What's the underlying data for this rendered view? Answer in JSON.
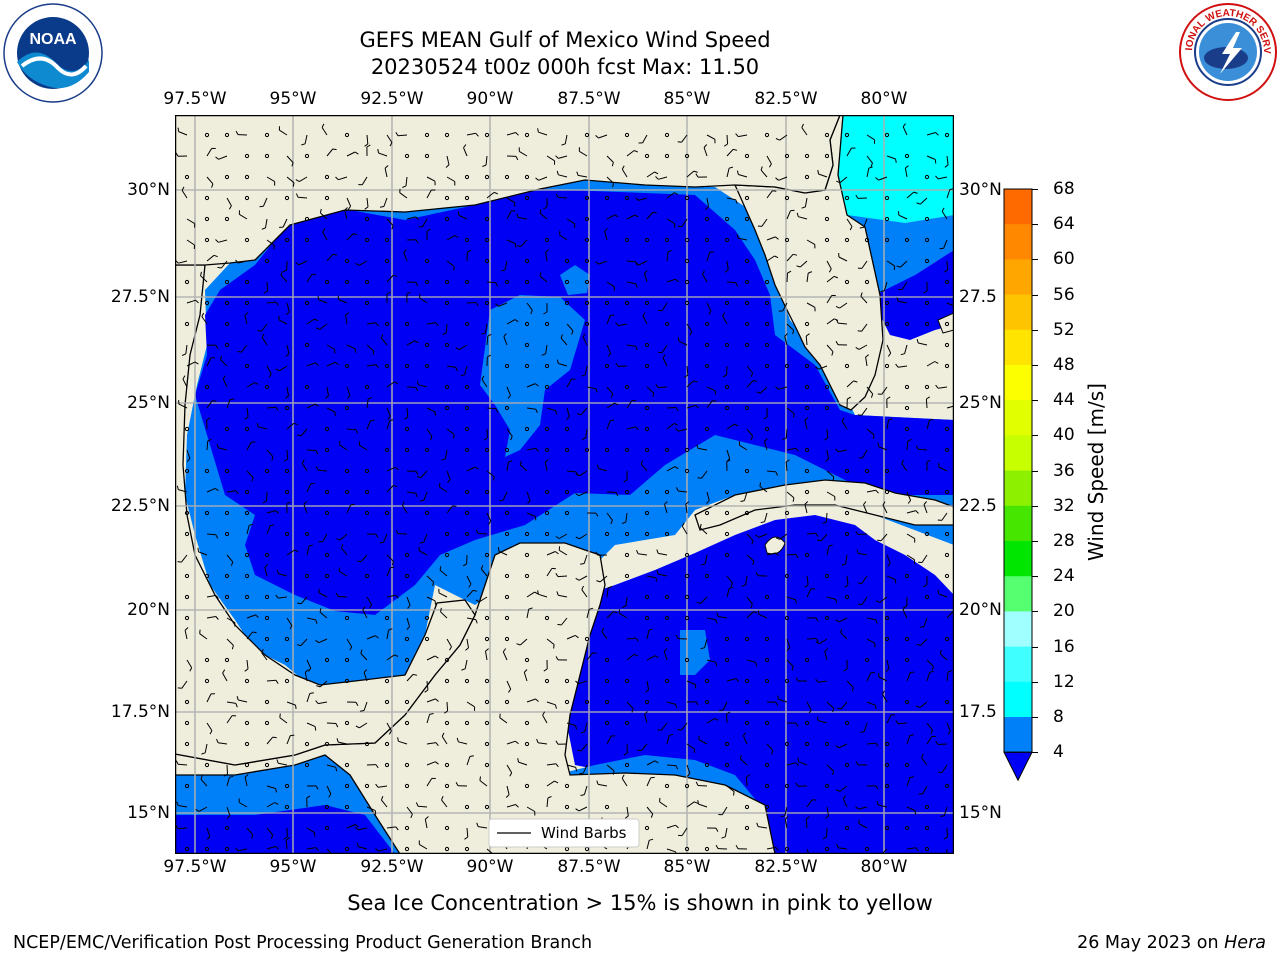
{
  "header": {
    "title_line1": "GEFS MEAN Gulf of Mexico Wind Speed",
    "title_line2": "20230524 t00z 000h fcst   Max: 11.50"
  },
  "logos": {
    "left": "NOAA",
    "left_ring_text": "NATIONAL OCEANIC AND ATMOSPHERIC ADMINISTRATION · U.S. DEPARTMENT OF COMMERCE",
    "right_ring_text": "NATIONAL WEATHER SERVICE"
  },
  "map": {
    "lon_labels": [
      "97.5°W",
      "95°W",
      "92.5°W",
      "90°W",
      "87.5°W",
      "85°W",
      "82.5°W",
      "80°W"
    ],
    "lat_labels_left": [
      "30°N",
      "27.5°N",
      "25°N",
      "22.5°N",
      "20°N",
      "17.5°N",
      "15°N"
    ],
    "lat_labels_right": [
      "30°N",
      "27.5",
      "25°N",
      "22.5",
      "20°N",
      "17.5",
      "15°N"
    ],
    "legend_label": "Wind Barbs",
    "colors": {
      "land": "#efeedd",
      "ocean_0_4": "#0000f5",
      "ocean_4_8": "#0080f8",
      "ocean_8_12": "#00ffff",
      "ocean_12_16": "#40ffff",
      "grid": "#b0b0b0"
    }
  },
  "colorbar": {
    "label": "Wind Speed [m/s]",
    "ticks": [
      "68",
      "64",
      "60",
      "56",
      "52",
      "48",
      "44",
      "40",
      "36",
      "32",
      "28",
      "24",
      "20",
      "16",
      "12",
      "8",
      "4"
    ],
    "colors": [
      "#ff1a00",
      "#ff4d00",
      "#ff6a00",
      "#ff8800",
      "#ffa600",
      "#ffc400",
      "#ffe400",
      "#fcff00",
      "#e2ff00",
      "#c8ff00",
      "#8cf000",
      "#46e600",
      "#00e600",
      "#55ff70",
      "#a0ffff",
      "#40ffff",
      "#00ffff",
      "#0080f8"
    ],
    "extend_color": "#0000f5"
  },
  "caption": "Sea Ice Concentration > 15% is shown in pink to yellow",
  "footer": {
    "left": "NCEP/EMC/Verification Post Processing Product Generation Branch",
    "right_prefix": "26 May 2023 on ",
    "right_host": "Hera"
  }
}
